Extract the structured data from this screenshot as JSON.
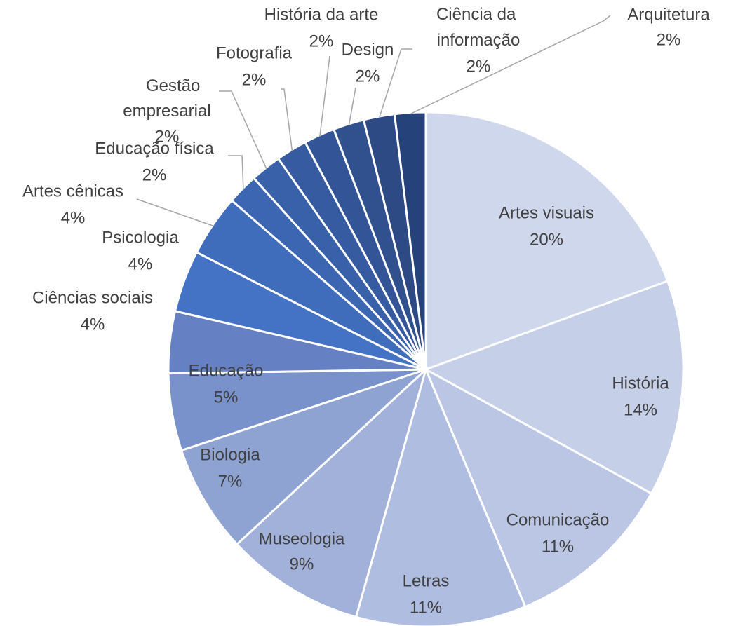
{
  "chart_data": {
    "type": "pie",
    "categories": [
      "Artes visuais",
      "História",
      "Comunicação",
      "Letras",
      "Museologia",
      "Biologia",
      "Educação",
      "Ciências sociais",
      "Psicologia",
      "Artes cênicas",
      "Educação física",
      "Gestão empresarial",
      "Fotografia",
      "História da arte",
      "Design",
      "Ciência da informação",
      "Arquitetura"
    ],
    "values": [
      20,
      14,
      11,
      11,
      9,
      7,
      5,
      4,
      4,
      4,
      2,
      2,
      2,
      2,
      2,
      2,
      2
    ],
    "value_labels": [
      "20%",
      "14%",
      "11%",
      "11%",
      "9%",
      "7%",
      "5%",
      "4%",
      "4%",
      "4%",
      "2%",
      "2%",
      "2%",
      "2%",
      "2%",
      "2%",
      "2%"
    ],
    "colors": [
      "#cfd7ec",
      "#c5cfe8",
      "#bac6e4",
      "#afbde0",
      "#a1b1da",
      "#8fa3d3",
      "#7a92cb",
      "#6581c4",
      "#4472c4",
      "#3f6cbb",
      "#3c66b2",
      "#3961a9",
      "#365ba0",
      "#335597",
      "#30508e",
      "#2d4a85",
      "#26427a"
    ]
  }
}
